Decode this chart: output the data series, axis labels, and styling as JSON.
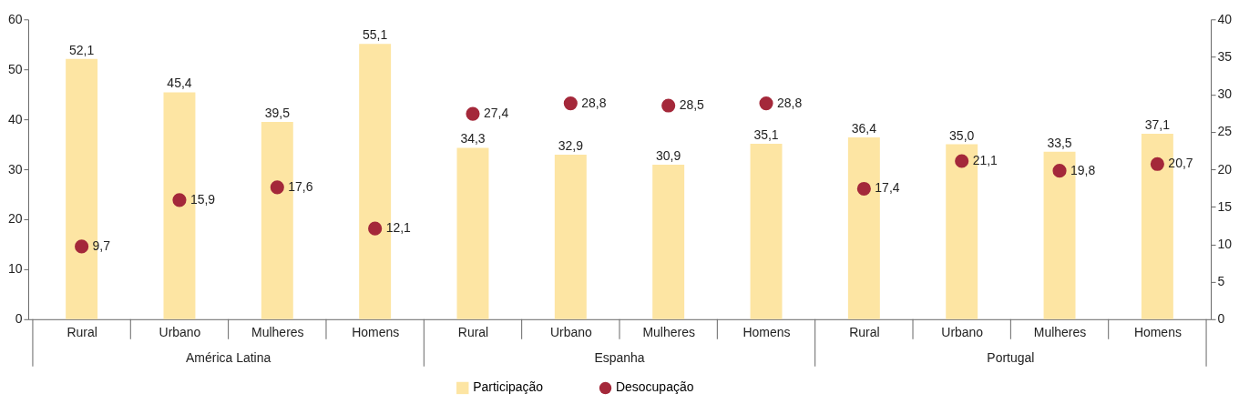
{
  "chart_data": {
    "type": "bar",
    "categories": [
      "Rural",
      "Urbano",
      "Mulheres",
      "Homens",
      "Rural",
      "Urbano",
      "Mulheres",
      "Homens",
      "Rural",
      "Urbano",
      "Mulheres",
      "Homens"
    ],
    "series": [
      {
        "name": "Participação",
        "color": "#fde5a3",
        "values": [
          52.1,
          45.4,
          39.5,
          55.1,
          34.3,
          32.9,
          30.9,
          35.1,
          36.4,
          35.0,
          33.5,
          37.1
        ],
        "value_labels": [
          "52,1",
          "45,4",
          "39,5",
          "55,1",
          "34,3",
          "32,9",
          "30,9",
          "35,1",
          "36,4",
          "35,0",
          "33,5",
          "37,1"
        ]
      },
      {
        "name": "Desocupação",
        "type": "scatter",
        "axis": "y2",
        "color": "#a4283a",
        "values": [
          9.7,
          15.9,
          17.6,
          12.1,
          27.4,
          28.8,
          28.5,
          28.8,
          17.4,
          21.1,
          19.8,
          20.7
        ],
        "value_labels": [
          "9,7",
          "15,9",
          "17,6",
          "12,1",
          "27,4",
          "28,8",
          "28,5",
          "28,8",
          "17,4",
          "21,1",
          "19,8",
          "20,7"
        ]
      }
    ],
    "ylim": [
      0,
      60
    ],
    "yticks": [
      0,
      10,
      20,
      30,
      40,
      50,
      60
    ],
    "y2lim": [
      0,
      40
    ],
    "y2ticks": [
      0,
      5,
      10,
      15,
      20,
      25,
      30,
      35,
      40
    ],
    "annotations": [
      "América Latina",
      "Espanha",
      "Portugal"
    ],
    "grid": false,
    "legend": "bottom",
    "marker": "circle"
  }
}
